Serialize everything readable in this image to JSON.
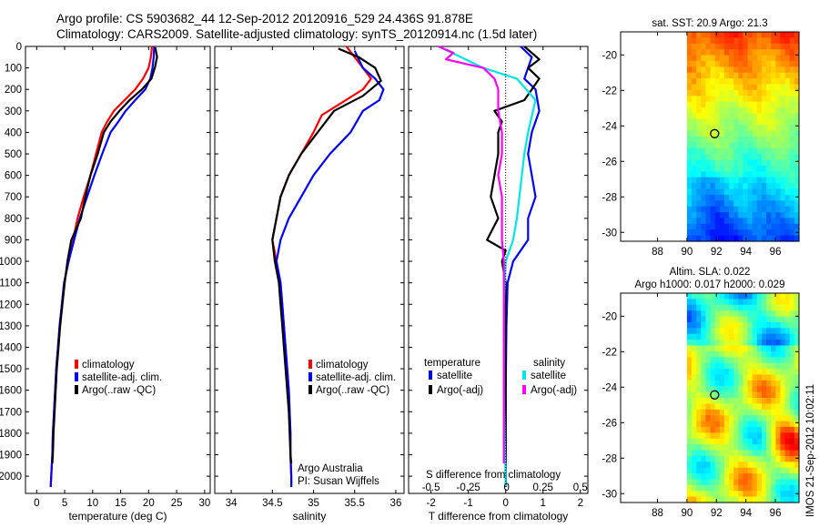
{
  "figure": {
    "title_line1": "Argo profile: CS 5903682_44 12-Sep-2012 20120916_529 24.436S 91.878E",
    "title_line2": "Climatology: CARS2009. Satellite-adjusted climatology: synTS_20120914.nc (1.5d later)",
    "side_label": "IMOS 21-Sep-2012 10:02:11",
    "credit_line1": "Argo Australia",
    "credit_line2": "PI: Susan Wijffels"
  },
  "colors": {
    "climatology": "#ff0000",
    "satellite": "#0000ff",
    "argo": "#000000",
    "sal_satellite": "#00e5e5",
    "sal_argo": "#ff00ff"
  },
  "chart_data": [
    {
      "id": "temperature",
      "type": "line",
      "xlabel": "temperature (deg C)",
      "ylabel": "",
      "xlim": [
        -2,
        31
      ],
      "ylim": [
        2080,
        0
      ],
      "xticks": [
        0,
        5,
        10,
        15,
        20,
        25,
        30
      ],
      "yticks": [
        0,
        100,
        200,
        300,
        400,
        500,
        600,
        700,
        800,
        900,
        1000,
        1100,
        1200,
        1300,
        1400,
        1500,
        1600,
        1700,
        1800,
        1900,
        2000
      ],
      "legend": [
        "climatology",
        "satellite-adj. clim.",
        "Argo(..raw -QC)"
      ],
      "series": [
        {
          "name": "climatology",
          "color": "#ff0000",
          "points": [
            [
              20.6,
              0
            ],
            [
              20.4,
              50
            ],
            [
              20.0,
              100
            ],
            [
              19.0,
              150
            ],
            [
              17.6,
              200
            ],
            [
              15.7,
              250
            ],
            [
              13.8,
              300
            ],
            [
              12.6,
              350
            ],
            [
              11.6,
              400
            ],
            [
              10.6,
              500
            ],
            [
              9.6,
              600
            ],
            [
              8.4,
              700
            ],
            [
              7.3,
              800
            ],
            [
              6.5,
              900
            ],
            [
              5.7,
              1000
            ],
            [
              4.9,
              1100
            ],
            [
              4.5,
              1200
            ],
            [
              4.1,
              1300
            ],
            [
              3.8,
              1400
            ],
            [
              3.5,
              1500
            ],
            [
              3.3,
              1600
            ],
            [
              3.1,
              1700
            ],
            [
              2.9,
              1800
            ],
            [
              2.8,
              1900
            ],
            [
              2.6,
              2000
            ],
            [
              2.5,
              2050
            ]
          ]
        },
        {
          "name": "satellite-adj. clim.",
          "color": "#0000ff",
          "points": [
            [
              21.0,
              0
            ],
            [
              20.9,
              50
            ],
            [
              20.7,
              100
            ],
            [
              20.3,
              150
            ],
            [
              19.4,
              200
            ],
            [
              17.6,
              250
            ],
            [
              15.9,
              300
            ],
            [
              14.6,
              350
            ],
            [
              13.2,
              400
            ],
            [
              11.7,
              500
            ],
            [
              10.3,
              600
            ],
            [
              9.0,
              700
            ],
            [
              7.7,
              800
            ],
            [
              6.7,
              900
            ],
            [
              5.7,
              1000
            ],
            [
              4.9,
              1100
            ],
            [
              4.5,
              1200
            ],
            [
              4.1,
              1300
            ],
            [
              3.8,
              1400
            ],
            [
              3.5,
              1500
            ],
            [
              3.3,
              1600
            ],
            [
              3.1,
              1700
            ],
            [
              2.9,
              1800
            ],
            [
              2.8,
              1900
            ],
            [
              2.6,
              2000
            ],
            [
              2.5,
              2050
            ]
          ]
        },
        {
          "name": "Argo(..raw -QC)",
          "color": "#000000",
          "points": [
            [
              21.2,
              5
            ],
            [
              21.5,
              50
            ],
            [
              21.1,
              100
            ],
            [
              20.5,
              150
            ],
            [
              18.8,
              200
            ],
            [
              16.6,
              250
            ],
            [
              14.8,
              300
            ],
            [
              13.2,
              350
            ],
            [
              12.0,
              400
            ],
            [
              10.9,
              500
            ],
            [
              9.6,
              600
            ],
            [
              8.7,
              700
            ],
            [
              7.9,
              800
            ],
            [
              6.2,
              900
            ],
            [
              5.5,
              1000
            ],
            [
              5.0,
              1100
            ],
            [
              4.6,
              1200
            ],
            [
              4.2,
              1300
            ],
            [
              3.9,
              1400
            ],
            [
              3.6,
              1500
            ],
            [
              3.4,
              1600
            ],
            [
              3.2,
              1700
            ],
            [
              3.0,
              1800
            ],
            [
              2.9,
              1900
            ],
            [
              2.8,
              1940
            ]
          ]
        }
      ]
    },
    {
      "id": "salinity",
      "type": "line",
      "xlabel": "salinity",
      "ylabel": "",
      "xlim": [
        33.8,
        36.1
      ],
      "ylim": [
        2080,
        0
      ],
      "xticks": [
        34,
        34.5,
        35,
        35.5,
        36
      ],
      "legend": [
        "climatology",
        "satellite-adj. clim.",
        "Argo(..raw -QC)"
      ],
      "series": [
        {
          "name": "climatology",
          "color": "#ff0000",
          "points": [
            [
              35.4,
              0
            ],
            [
              35.5,
              50
            ],
            [
              35.6,
              100
            ],
            [
              35.7,
              150
            ],
            [
              35.6,
              200
            ],
            [
              35.35,
              260
            ],
            [
              35.1,
              320
            ],
            [
              35.0,
              400
            ],
            [
              34.85,
              500
            ],
            [
              34.7,
              600
            ],
            [
              34.6,
              700
            ],
            [
              34.55,
              800
            ],
            [
              34.5,
              900
            ],
            [
              34.55,
              1000
            ],
            [
              34.6,
              1100
            ],
            [
              34.62,
              1200
            ],
            [
              34.64,
              1300
            ],
            [
              34.66,
              1400
            ],
            [
              34.68,
              1500
            ],
            [
              34.7,
              1600
            ],
            [
              34.71,
              1700
            ],
            [
              34.72,
              1800
            ],
            [
              34.72,
              1900
            ],
            [
              34.73,
              2000
            ],
            [
              34.73,
              2050
            ]
          ]
        },
        {
          "name": "satellite-adj. clim.",
          "color": "#0000ff",
          "points": [
            [
              35.5,
              20
            ],
            [
              35.6,
              100
            ],
            [
              35.75,
              150
            ],
            [
              35.85,
              200
            ],
            [
              35.8,
              250
            ],
            [
              35.6,
              300
            ],
            [
              35.45,
              400
            ],
            [
              35.2,
              500
            ],
            [
              35.0,
              600
            ],
            [
              34.85,
              700
            ],
            [
              34.7,
              800
            ],
            [
              34.6,
              900
            ],
            [
              34.55,
              1000
            ],
            [
              34.6,
              1100
            ],
            [
              34.62,
              1200
            ],
            [
              34.64,
              1300
            ],
            [
              34.66,
              1400
            ],
            [
              34.68,
              1500
            ],
            [
              34.7,
              1600
            ],
            [
              34.71,
              1700
            ],
            [
              34.72,
              1800
            ],
            [
              34.72,
              1900
            ],
            [
              34.73,
              2000
            ],
            [
              34.73,
              2050
            ]
          ]
        },
        {
          "name": "Argo(..raw -QC)",
          "color": "#000000",
          "points": [
            [
              35.3,
              10
            ],
            [
              35.55,
              50
            ],
            [
              35.75,
              100
            ],
            [
              35.82,
              160
            ],
            [
              35.6,
              230
            ],
            [
              35.25,
              300
            ],
            [
              35.05,
              400
            ],
            [
              34.85,
              500
            ],
            [
              34.7,
              600
            ],
            [
              34.6,
              700
            ],
            [
              34.55,
              800
            ],
            [
              34.5,
              900
            ],
            [
              34.53,
              1000
            ],
            [
              34.58,
              1100
            ],
            [
              34.6,
              1200
            ],
            [
              34.62,
              1300
            ],
            [
              34.64,
              1400
            ],
            [
              34.66,
              1500
            ],
            [
              34.68,
              1600
            ],
            [
              34.7,
              1700
            ],
            [
              34.71,
              1800
            ],
            [
              34.72,
              1900
            ],
            [
              34.73,
              1940
            ]
          ]
        }
      ]
    },
    {
      "id": "difference",
      "type": "line",
      "xlabel": "T difference from climatology",
      "xlabel_top": "S difference from climatology",
      "s_ticks": [
        "-0.5",
        "-0.25",
        "0",
        "0.25",
        "0.5"
      ],
      "xlim": [
        -2.6,
        2.2
      ],
      "ylim": [
        2080,
        0
      ],
      "xticks": [
        -2,
        -1,
        0,
        1,
        2
      ],
      "legend_temperature": "temperature",
      "legend_salinity": "salinity",
      "legend_items": [
        "satellite",
        "Argo(-adj)",
        "satellite",
        "Argo(-adj)"
      ],
      "series": [
        {
          "name": "T satellite",
          "color": "#0000ff",
          "points": [
            [
              0.4,
              0
            ],
            [
              0.7,
              50
            ],
            [
              0.6,
              100
            ],
            [
              0.5,
              150
            ],
            [
              0.8,
              200
            ],
            [
              0.9,
              300
            ],
            [
              0.7,
              400
            ],
            [
              0.6,
              500
            ],
            [
              0.7,
              600
            ],
            [
              0.8,
              700
            ],
            [
              0.6,
              800
            ],
            [
              0.6,
              900
            ],
            [
              0.2,
              1000
            ],
            [
              0.05,
              1100
            ],
            [
              0.02,
              1300
            ],
            [
              0.0,
              1600
            ],
            [
              0.0,
              2050
            ]
          ]
        },
        {
          "name": "T Argo(-adj)",
          "color": "#000000",
          "points": [
            [
              0.5,
              0
            ],
            [
              0.9,
              60
            ],
            [
              0.6,
              100
            ],
            [
              0.9,
              150
            ],
            [
              0.7,
              200
            ],
            [
              0.5,
              250
            ],
            [
              -0.3,
              300
            ],
            [
              -0.1,
              350
            ],
            [
              -0.2,
              400
            ],
            [
              -0.2,
              500
            ],
            [
              -0.3,
              600
            ],
            [
              -0.4,
              700
            ],
            [
              -0.2,
              800
            ],
            [
              -0.5,
              900
            ],
            [
              0.0,
              950
            ],
            [
              -0.1,
              1000
            ],
            [
              0.0,
              1100
            ],
            [
              0.0,
              1300
            ],
            [
              0.0,
              1600
            ],
            [
              0.0,
              1940
            ]
          ]
        },
        {
          "name": "S satellite",
          "color": "#00e5e5",
          "points": [
            [
              -1.8,
              0
            ],
            [
              -1.2,
              50
            ],
            [
              -0.6,
              100
            ],
            [
              0.3,
              150
            ],
            [
              0.8,
              250
            ],
            [
              0.6,
              400
            ],
            [
              0.5,
              500
            ],
            [
              0.4,
              650
            ],
            [
              0.3,
              800
            ],
            [
              0.2,
              900
            ],
            [
              0.0,
              1000
            ],
            [
              -0.05,
              1200
            ],
            [
              -0.05,
              1600
            ],
            [
              0.0,
              2050
            ]
          ]
        },
        {
          "name": "S Argo(-adj)",
          "color": "#ff00ff",
          "points": [
            [
              -1.8,
              0
            ],
            [
              -1.4,
              30
            ],
            [
              -1.6,
              60
            ],
            [
              -0.6,
              100
            ],
            [
              -0.3,
              150
            ],
            [
              -0.2,
              200
            ],
            [
              -0.2,
              300
            ],
            [
              -0.1,
              400
            ],
            [
              -0.1,
              500
            ],
            [
              -0.2,
              600
            ],
            [
              -0.1,
              700
            ],
            [
              -0.1,
              800
            ],
            [
              -0.1,
              900
            ],
            [
              -0.05,
              1000
            ],
            [
              -0.05,
              1200
            ],
            [
              -0.05,
              1600
            ],
            [
              -0.05,
              1940
            ]
          ]
        }
      ]
    },
    {
      "id": "sst-map",
      "type": "heatmap",
      "title": "sat. SST: 20.9 Argo: 21.3",
      "xlim": [
        85.5,
        97.6
      ],
      "ylim": [
        -30.5,
        -18.7
      ],
      "xticks": [
        88,
        90,
        92,
        94,
        96
      ],
      "yticks": [
        -20,
        -22,
        -24,
        -26,
        -28,
        -30
      ],
      "data_lon_range": [
        90,
        97.6
      ],
      "argo_marker": {
        "lon": 91.878,
        "lat": -24.436
      },
      "colormap": "jet",
      "grid_field": "SST"
    },
    {
      "id": "sla-map",
      "type": "heatmap",
      "title_line1": "Altim. SLA: 0.022",
      "title_line2": "Argo h1000: 0.017 h2000: 0.029",
      "xlim": [
        85.5,
        97.6
      ],
      "ylim": [
        -30.5,
        -18.7
      ],
      "xticks": [
        88,
        90,
        92,
        94,
        96
      ],
      "yticks": [
        -20,
        -22,
        -24,
        -26,
        -28,
        -30
      ],
      "data_lon_range": [
        90,
        97.6
      ],
      "argo_marker": {
        "lon": 91.878,
        "lat": -24.436
      },
      "colormap": "jet",
      "grid_field": "SLA"
    }
  ]
}
